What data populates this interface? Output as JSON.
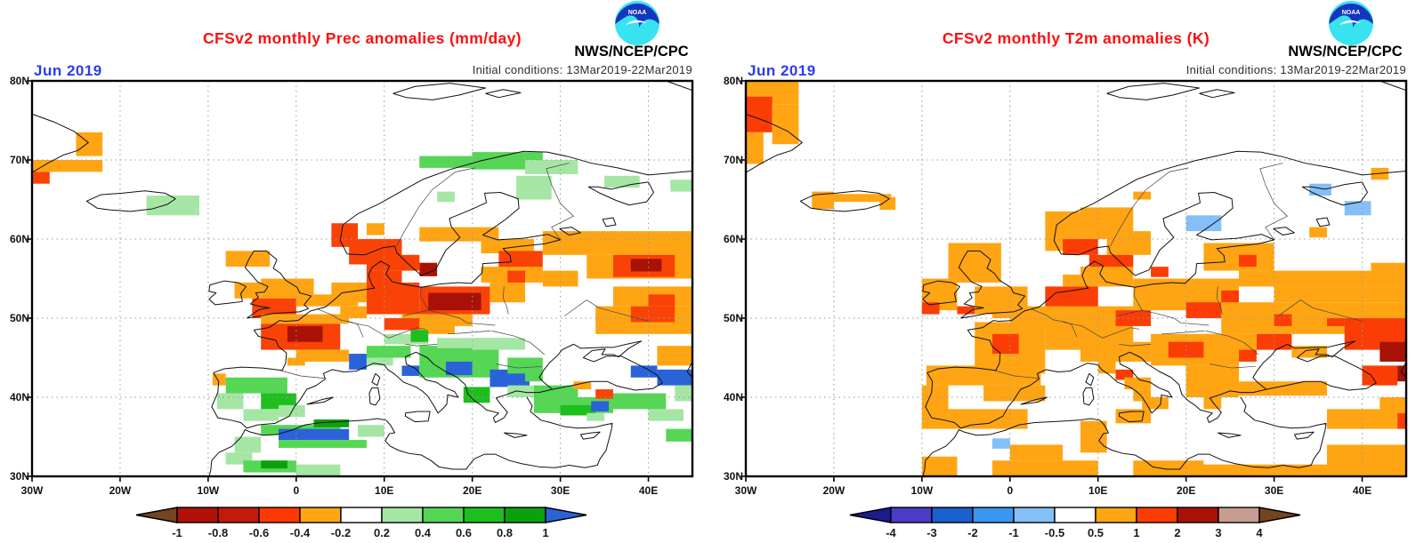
{
  "panels": [
    {
      "title": "CFSv2 monthly Prec anomalies (mm/day)",
      "date_label": "Jun 2019",
      "init_conditions": "Initial conditions: 13Mar2019-22Mar2019",
      "agency": "NWS/NCEP/CPC",
      "logo_text": "NOAA"
    },
    {
      "title": "CFSv2 monthly T2m anomalies (K)",
      "date_label": "Jun 2019",
      "init_conditions": "Initial conditions: 13Mar2019-22Mar2019",
      "agency": "NWS/NCEP/CPC",
      "logo_text": "NOAA"
    }
  ],
  "colors": {
    "title_red": "#fa1010",
    "date_blue": "#2b3bf0",
    "grid_gray": "#999999",
    "coast_black": "#111111"
  },
  "chart_data": [
    {
      "type": "heatmap",
      "title": "CFSv2 monthly Prec anomalies (mm/day)",
      "units": "mm/day",
      "month": "Jun 2019",
      "initial_conditions": "13Mar2019-22Mar2019",
      "lon_range": [
        -30,
        45
      ],
      "lat_range": [
        30,
        80
      ],
      "xticks": [
        "30W",
        "20W",
        "10W",
        "0",
        "10E",
        "20E",
        "30E",
        "40E"
      ],
      "yticks": [
        "80N",
        "70N",
        "60N",
        "50N",
        "40N",
        "30N"
      ],
      "grid": "dotted",
      "colorbar": {
        "labels": [
          "-1",
          "-0.8",
          "-0.6",
          "-0.4",
          "-0.2",
          "0.2",
          "0.4",
          "0.6",
          "0.8",
          "1"
        ],
        "segments": [
          "#b01108",
          "#c41a0a",
          "#fd3903",
          "#ffa513",
          "#ffffff",
          "#a5e6a5",
          "#55d655",
          "#1fbe1f",
          "#0da00d"
        ],
        "left_arrow": "#73461f",
        "right_arrow": "#2a63d8"
      },
      "palette": {
        "o": "#ffa513",
        "r": "#f94306",
        "d": "#a81206",
        "b": "#2a63d8",
        "g1": "#a5e6a5",
        "g2": "#55d655",
        "g3": "#1fbe1f",
        "g4": "#0da00d"
      },
      "cells": [
        [
          -30,
          70,
          8,
          1.5,
          "o"
        ],
        [
          -30,
          68.5,
          2,
          1.5,
          "r"
        ],
        [
          -25,
          73.5,
          3,
          3,
          "o"
        ],
        [
          -17,
          65.5,
          6,
          2.5,
          "g1"
        ],
        [
          14,
          70.5,
          6,
          1.5,
          "g2"
        ],
        [
          20,
          71,
          8,
          2.2,
          "g2"
        ],
        [
          26,
          70,
          6,
          1.8,
          "g1"
        ],
        [
          25,
          68,
          4,
          3,
          "g1"
        ],
        [
          16,
          66,
          2,
          1.3,
          "g1"
        ],
        [
          35,
          68,
          4,
          1.5,
          "g1"
        ],
        [
          42.5,
          67.5,
          2.5,
          1.5,
          "g1"
        ],
        [
          43,
          59,
          2,
          2,
          "g1"
        ],
        [
          4,
          62,
          3,
          3,
          "r"
        ],
        [
          8,
          62,
          2,
          1.5,
          "o"
        ],
        [
          6,
          60,
          6,
          3.2,
          "r"
        ],
        [
          14,
          61.5,
          9,
          1.8,
          "o"
        ],
        [
          14,
          57,
          2,
          1.7,
          "d"
        ],
        [
          8,
          58,
          6,
          2,
          "r"
        ],
        [
          8,
          56,
          4,
          2,
          "r"
        ],
        [
          -8,
          58.5,
          5,
          2,
          "o"
        ],
        [
          -7,
          54.5,
          3,
          2,
          "o"
        ],
        [
          -4,
          55,
          6,
          2.5,
          "o"
        ],
        [
          -5,
          52.5,
          5,
          2.5,
          "r"
        ],
        [
          0,
          53,
          3,
          1.5,
          "o"
        ],
        [
          3,
          53,
          4,
          1.5,
          "o"
        ],
        [
          -4,
          50.5,
          10,
          1.2,
          "o"
        ],
        [
          -4,
          49.3,
          9,
          3.3,
          "r"
        ],
        [
          -1,
          49,
          4,
          2,
          "d"
        ],
        [
          0,
          46,
          6,
          1.5,
          "o"
        ],
        [
          -1,
          45,
          2,
          1,
          "o"
        ],
        [
          4,
          54.5,
          4,
          2.5,
          "o"
        ],
        [
          8,
          54.5,
          6,
          4,
          "r"
        ],
        [
          5,
          51.5,
          3,
          1.5,
          "o"
        ],
        [
          14,
          54,
          8,
          3.5,
          "r"
        ],
        [
          15,
          53.2,
          6,
          2.2,
          "d"
        ],
        [
          12,
          50.5,
          8,
          1.5,
          "o"
        ],
        [
          22,
          54.5,
          4,
          2.5,
          "o"
        ],
        [
          10,
          50,
          4,
          1.5,
          "r"
        ],
        [
          14,
          49.5,
          4,
          1.5,
          "o"
        ],
        [
          21,
          60,
          6,
          1.8,
          "o"
        ],
        [
          23,
          58.5,
          5,
          2.5,
          "r"
        ],
        [
          21,
          56.5,
          7,
          2,
          "o"
        ],
        [
          24,
          56,
          2,
          1.5,
          "r"
        ],
        [
          28,
          61,
          17,
          3,
          "o"
        ],
        [
          33,
          58,
          12,
          3,
          "o"
        ],
        [
          36,
          58,
          7,
          2.8,
          "r"
        ],
        [
          38,
          57.5,
          3.5,
          1.6,
          "d"
        ],
        [
          28,
          56,
          4,
          2,
          "o"
        ],
        [
          36,
          54,
          9,
          2.5,
          "o"
        ],
        [
          40,
          53,
          3,
          1.5,
          "r"
        ],
        [
          34,
          51.5,
          11,
          3.5,
          "o"
        ],
        [
          38,
          51.5,
          5,
          2,
          "r"
        ],
        [
          41,
          46.5,
          4,
          2.5,
          "o"
        ],
        [
          6,
          45.5,
          2,
          2,
          "b"
        ],
        [
          8,
          46.5,
          5,
          1.5,
          "g2"
        ],
        [
          10,
          48,
          5,
          1.3,
          "g1"
        ],
        [
          13,
          48.5,
          2,
          1.5,
          "g3"
        ],
        [
          12,
          44,
          2,
          1.3,
          "b"
        ],
        [
          8,
          45,
          3,
          1,
          "g1"
        ],
        [
          14,
          46.5,
          9,
          4,
          "g2"
        ],
        [
          16,
          47.5,
          9,
          1.3,
          "g1"
        ],
        [
          20,
          47.5,
          6,
          1.5,
          "g1"
        ],
        [
          17,
          44.5,
          3,
          1.7,
          "b"
        ],
        [
          22,
          43.5,
          4.5,
          2.2,
          "b"
        ],
        [
          19,
          41.3,
          3,
          2,
          "g3"
        ],
        [
          24,
          45,
          4,
          2,
          "g2"
        ],
        [
          26,
          43.5,
          2,
          1.5,
          "g2"
        ],
        [
          24,
          41.5,
          4,
          1.5,
          "g1"
        ],
        [
          -9.5,
          43,
          1.5,
          1.5,
          "o"
        ],
        [
          -8,
          42.5,
          7,
          2,
          "g2"
        ],
        [
          -4,
          40.5,
          4,
          2,
          "g3"
        ],
        [
          -9,
          40.5,
          3,
          2,
          "g1"
        ],
        [
          -6,
          38.5,
          4,
          1.5,
          "g1"
        ],
        [
          -2,
          39,
          3,
          1.5,
          "g1"
        ],
        [
          -7,
          35,
          3,
          2,
          "g1"
        ],
        [
          -4,
          36.5,
          9,
          1.3,
          "g2"
        ],
        [
          -2,
          36,
          8,
          1.4,
          "b"
        ],
        [
          -2,
          34.6,
          10,
          1,
          "g2"
        ],
        [
          2,
          37.2,
          4,
          1,
          "g4"
        ],
        [
          7,
          36.5,
          3,
          1.5,
          "g1"
        ],
        [
          -8,
          33,
          3,
          1.5,
          "g1"
        ],
        [
          -6,
          32,
          6,
          1.5,
          "g2"
        ],
        [
          -4,
          32,
          3,
          1,
          "g4"
        ],
        [
          0,
          31.5,
          5,
          1.5,
          "g1"
        ],
        [
          27,
          41.5,
          5,
          1.5,
          "g2"
        ],
        [
          29,
          40,
          3,
          1.7,
          "b"
        ],
        [
          27,
          40,
          9,
          2,
          "g2"
        ],
        [
          30,
          39,
          4,
          1.3,
          "g3"
        ],
        [
          33.5,
          39.5,
          2,
          1.3,
          "b"
        ],
        [
          34,
          41,
          2,
          1.2,
          "r"
        ],
        [
          31.5,
          42,
          2,
          1,
          "o"
        ],
        [
          39,
          40,
          1.5,
          1,
          "r"
        ],
        [
          36,
          40.5,
          6,
          2,
          "g2"
        ],
        [
          40,
          38.5,
          4,
          1.5,
          "g1"
        ],
        [
          42,
          36,
          3,
          1.6,
          "g2"
        ],
        [
          38,
          44,
          3,
          1.5,
          "b"
        ],
        [
          41,
          43.5,
          4,
          2,
          "b"
        ],
        [
          43,
          41.5,
          2,
          2,
          "g1"
        ],
        [
          33,
          38,
          2,
          1,
          "g1"
        ]
      ]
    },
    {
      "type": "heatmap",
      "title": "CFSv2 monthly T2m anomalies (K)",
      "units": "K",
      "month": "Jun 2019",
      "initial_conditions": "13Mar2019-22Mar2019",
      "lon_range": [
        -30,
        45
      ],
      "lat_range": [
        30,
        80
      ],
      "xticks": [
        "30W",
        "20W",
        "10W",
        "0",
        "10E",
        "20E",
        "30E",
        "40E"
      ],
      "yticks": [
        "80N",
        "70N",
        "60N",
        "50N",
        "40N",
        "30N"
      ],
      "grid": "dotted",
      "colorbar": {
        "labels": [
          "-4",
          "-3",
          "-2",
          "-1",
          "-0.5",
          "0.5",
          "1",
          "2",
          "3",
          "4"
        ],
        "segments": [
          "#4b3cc8",
          "#1b60cf",
          "#3b96f2",
          "#85bff7",
          "#ffffff",
          "#ffa513",
          "#fb3d05",
          "#a81206",
          "#c79d92"
        ],
        "left_arrow": "#1b1b8f",
        "right_arrow": "#73461f"
      },
      "palette": {
        "o": "#ffa513",
        "r": "#fb3d05",
        "d": "#a81206",
        "t": "#c79d92",
        "lb": "#85bff7"
      },
      "cells": [
        [
          -30,
          80,
          6,
          3,
          "o"
        ],
        [
          -30,
          78,
          3,
          4.5,
          "r"
        ],
        [
          -27,
          77,
          3,
          5,
          "o"
        ],
        [
          -30,
          73.5,
          2,
          4,
          "o"
        ],
        [
          -22.5,
          66,
          2.5,
          2.2,
          "o"
        ],
        [
          -20,
          65.7,
          6.5,
          1,
          "o"
        ],
        [
          -14.8,
          65.3,
          1.8,
          1.6,
          "o"
        ],
        [
          -10,
          55,
          4,
          4,
          "o"
        ],
        [
          -10,
          52,
          2,
          1.5,
          "r"
        ],
        [
          -7,
          59.5,
          6,
          5,
          "o"
        ],
        [
          -4,
          54,
          6,
          3.5,
          "o"
        ],
        [
          -6,
          51.5,
          2,
          1,
          "r"
        ],
        [
          -2,
          52,
          4,
          2,
          "o"
        ],
        [
          4,
          63.5,
          4,
          5,
          "o"
        ],
        [
          8,
          64,
          6,
          4,
          "o"
        ],
        [
          14,
          66,
          2,
          1,
          "o"
        ],
        [
          6,
          60,
          4,
          2,
          "r"
        ],
        [
          11,
          61,
          5,
          3,
          "o"
        ],
        [
          9,
          58,
          5,
          1.6,
          "r"
        ],
        [
          8,
          56.5,
          6,
          2.5,
          "o"
        ],
        [
          20,
          63,
          4,
          2,
          "lb"
        ],
        [
          34,
          67,
          2.5,
          1.5,
          "lb"
        ],
        [
          38,
          64.8,
          3,
          1.8,
          "lb"
        ],
        [
          41,
          69,
          2,
          1.5,
          "o"
        ],
        [
          34,
          61.5,
          2,
          1.3,
          "o"
        ],
        [
          22,
          59.5,
          8,
          3.5,
          "o"
        ],
        [
          26,
          58,
          2,
          1.5,
          "r"
        ],
        [
          4,
          54,
          6,
          4,
          "r"
        ],
        [
          6,
          55.5,
          4,
          1.5,
          "o"
        ],
        [
          0,
          51.5,
          6,
          2,
          "o"
        ],
        [
          -4,
          49.5,
          8,
          6.5,
          "o"
        ],
        [
          -2,
          48,
          3,
          2.5,
          "r"
        ],
        [
          -9.5,
          44,
          13,
          2.5,
          "o"
        ],
        [
          -10,
          41.5,
          3,
          5.5,
          "o"
        ],
        [
          -7,
          38.5,
          9,
          2.5,
          "o"
        ],
        [
          -3,
          41.5,
          7,
          2,
          "o"
        ],
        [
          4,
          51.5,
          10,
          5.5,
          "o"
        ],
        [
          12,
          51,
          4,
          2,
          "r"
        ],
        [
          8,
          47,
          8,
          2.5,
          "o"
        ],
        [
          14,
          55,
          12,
          4,
          "o"
        ],
        [
          16,
          56.5,
          2,
          1.3,
          "r"
        ],
        [
          20,
          52,
          4,
          2,
          "r"
        ],
        [
          24,
          53.5,
          2,
          1.5,
          "r"
        ],
        [
          26,
          56,
          19,
          2,
          "o"
        ],
        [
          30,
          54,
          15,
          2,
          "o"
        ],
        [
          24,
          52,
          21,
          4,
          "o"
        ],
        [
          30,
          50.5,
          2,
          1.5,
          "r"
        ],
        [
          16,
          48,
          10,
          4,
          "o"
        ],
        [
          18,
          47,
          4,
          2,
          "r"
        ],
        [
          20,
          44,
          6,
          3,
          "o"
        ],
        [
          28,
          48,
          4,
          2,
          "r"
        ],
        [
          22,
          48,
          6,
          3,
          "o"
        ],
        [
          26,
          46,
          2,
          1.5,
          "r"
        ],
        [
          10,
          44.5,
          2,
          1.5,
          "o"
        ],
        [
          12,
          43.5,
          2,
          1.3,
          "r"
        ],
        [
          13,
          42.5,
          3,
          1.5,
          "o"
        ],
        [
          14,
          41,
          2,
          1.5,
          "o"
        ],
        [
          12,
          38.5,
          4,
          1.8,
          "o"
        ],
        [
          15,
          40,
          3,
          1.5,
          "o"
        ],
        [
          20,
          42,
          6,
          2,
          "o"
        ],
        [
          22,
          40,
          2,
          1.5,
          "o"
        ],
        [
          26,
          42,
          10,
          1.8,
          "o"
        ],
        [
          36,
          38.5,
          8,
          2.5,
          "o"
        ],
        [
          42,
          40,
          3,
          2,
          "o"
        ],
        [
          44,
          38,
          1,
          2,
          "r"
        ],
        [
          38,
          50,
          7,
          4,
          "r"
        ],
        [
          42,
          47,
          3,
          2.5,
          "d"
        ],
        [
          44,
          44,
          1,
          2,
          "d"
        ],
        [
          40,
          44,
          4,
          2.5,
          "r"
        ],
        [
          36,
          50,
          2,
          1,
          "r"
        ],
        [
          32,
          46.5,
          4,
          1.5,
          "o"
        ],
        [
          41,
          57,
          4,
          2,
          "o"
        ],
        [
          -10,
          32.5,
          4,
          2.5,
          "o"
        ],
        [
          -2,
          34.8,
          2,
          1.3,
          "lb"
        ],
        [
          0,
          34,
          6,
          2,
          "o"
        ],
        [
          8,
          37,
          3,
          4,
          "o"
        ],
        [
          -2,
          32,
          12,
          2,
          "o"
        ],
        [
          14,
          32,
          8,
          2,
          "o"
        ],
        [
          20,
          31.5,
          6,
          1.5,
          "o"
        ],
        [
          26,
          31.5,
          6,
          1.5,
          "o"
        ],
        [
          30,
          31.5,
          6,
          1.5,
          "o"
        ],
        [
          36,
          34,
          9,
          4,
          "o"
        ]
      ]
    }
  ]
}
